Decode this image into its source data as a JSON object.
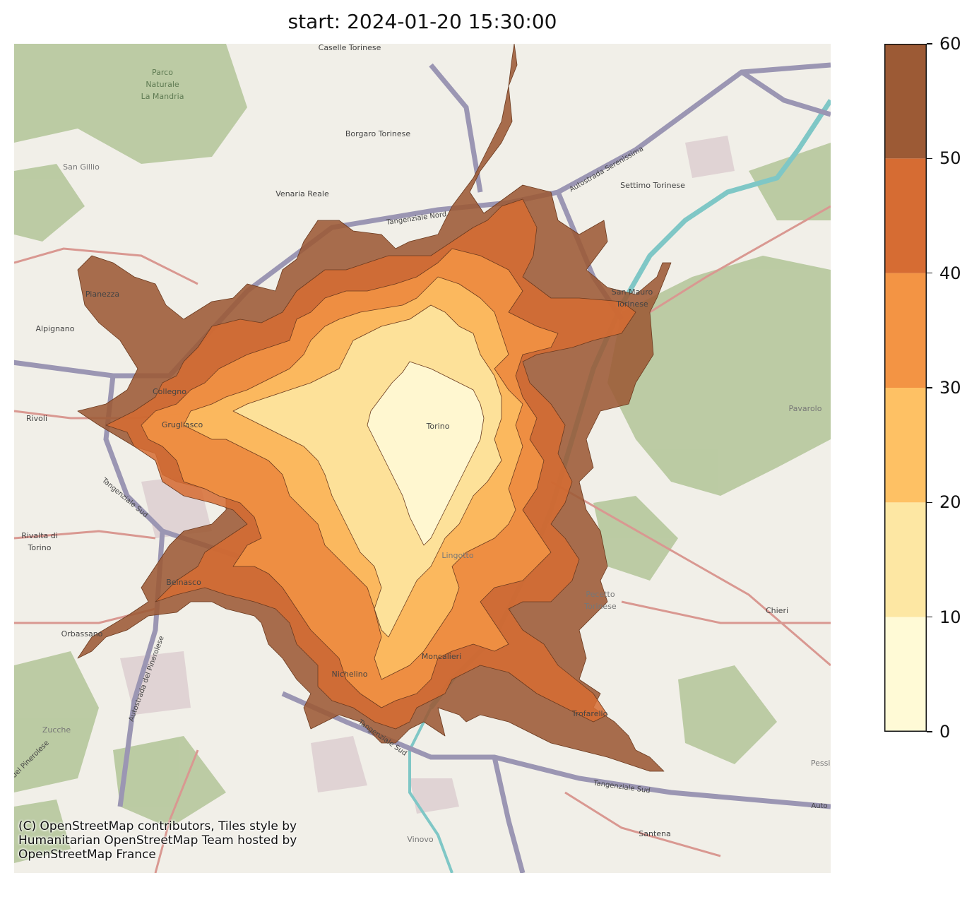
{
  "title": "start: 2024-01-20 15:30:00",
  "attribution": [
    "(C) OpenStreetMap contributors, Tiles style by",
    "Humanitarian OpenStreetMap Team hosted by",
    "OpenStreetMap France"
  ],
  "map_labels": {
    "caselle": "Caselle Torinese",
    "parco1": "Parco",
    "parco2": "Naturale",
    "parco3": "La Mandria",
    "borgaro": "Borgaro Torinese",
    "san_gillio": "San Gillio",
    "venaria": "Venaria Reale",
    "settimo": "Settimo Torinese",
    "autostrada_serenissima": "Autostrada Serenissima",
    "tangenziale_nord": "Tangenziale Nord",
    "pianezza": "Pianezza",
    "alpignano": "Alpignano",
    "san_mauro1": "San Mauro",
    "san_mauro2": "Torinese",
    "collegno": "Collegno",
    "rivoli": "Rivoli",
    "grugliasco": "Grugliasco",
    "torino": "Torino",
    "pavarolo": "Pavarolo",
    "tangenziale_sud_w": "Tangenziale Sud",
    "rivalta1": "Rivalta di",
    "rivalta2": "Torino",
    "lingotto": "Lingotto",
    "beinasco": "Beinasco",
    "pecetto1": "Pecetto",
    "pecetto2": "Torinese",
    "chieri": "Chieri",
    "orbassano": "Orbassano",
    "autostrada_pinerolese": "Autostrada del Pinerolese",
    "moncalieri": "Moncalieri",
    "nichelino": "Nichelino",
    "trofarello": "Trofarello",
    "zucche": "Zucche",
    "pinerolese_edge": "del Pinerolese",
    "tangenziale_sud_s": "Tangenziale Sud",
    "tangenziale_sud_e": "Tangenziale Sud",
    "pessio": "Pessio",
    "auto_edge": "Auto",
    "vinovo": "Vinovo",
    "santena": "Santena"
  },
  "colorbar": {
    "ticks": [
      "0",
      "10",
      "20",
      "30",
      "40",
      "50",
      "60"
    ],
    "min": 0,
    "max": 60,
    "bins": [
      {
        "from": 0,
        "to": 10,
        "color": "#fffad6"
      },
      {
        "from": 10,
        "to": 20,
        "color": "#fde7a3"
      },
      {
        "from": 20,
        "to": 30,
        "color": "#fec164"
      },
      {
        "from": 30,
        "to": 40,
        "color": "#f39444"
      },
      {
        "from": 40,
        "to": 50,
        "color": "#d66c33"
      },
      {
        "from": 50,
        "to": 60,
        "color": "#9c5a35"
      }
    ]
  },
  "colors": {
    "map_base": "#f1efe8",
    "green_area": "#a9bf8d",
    "road_motorway": "#9b96b3",
    "road_primary": "#d99891",
    "water": "#7fc7c6"
  }
}
